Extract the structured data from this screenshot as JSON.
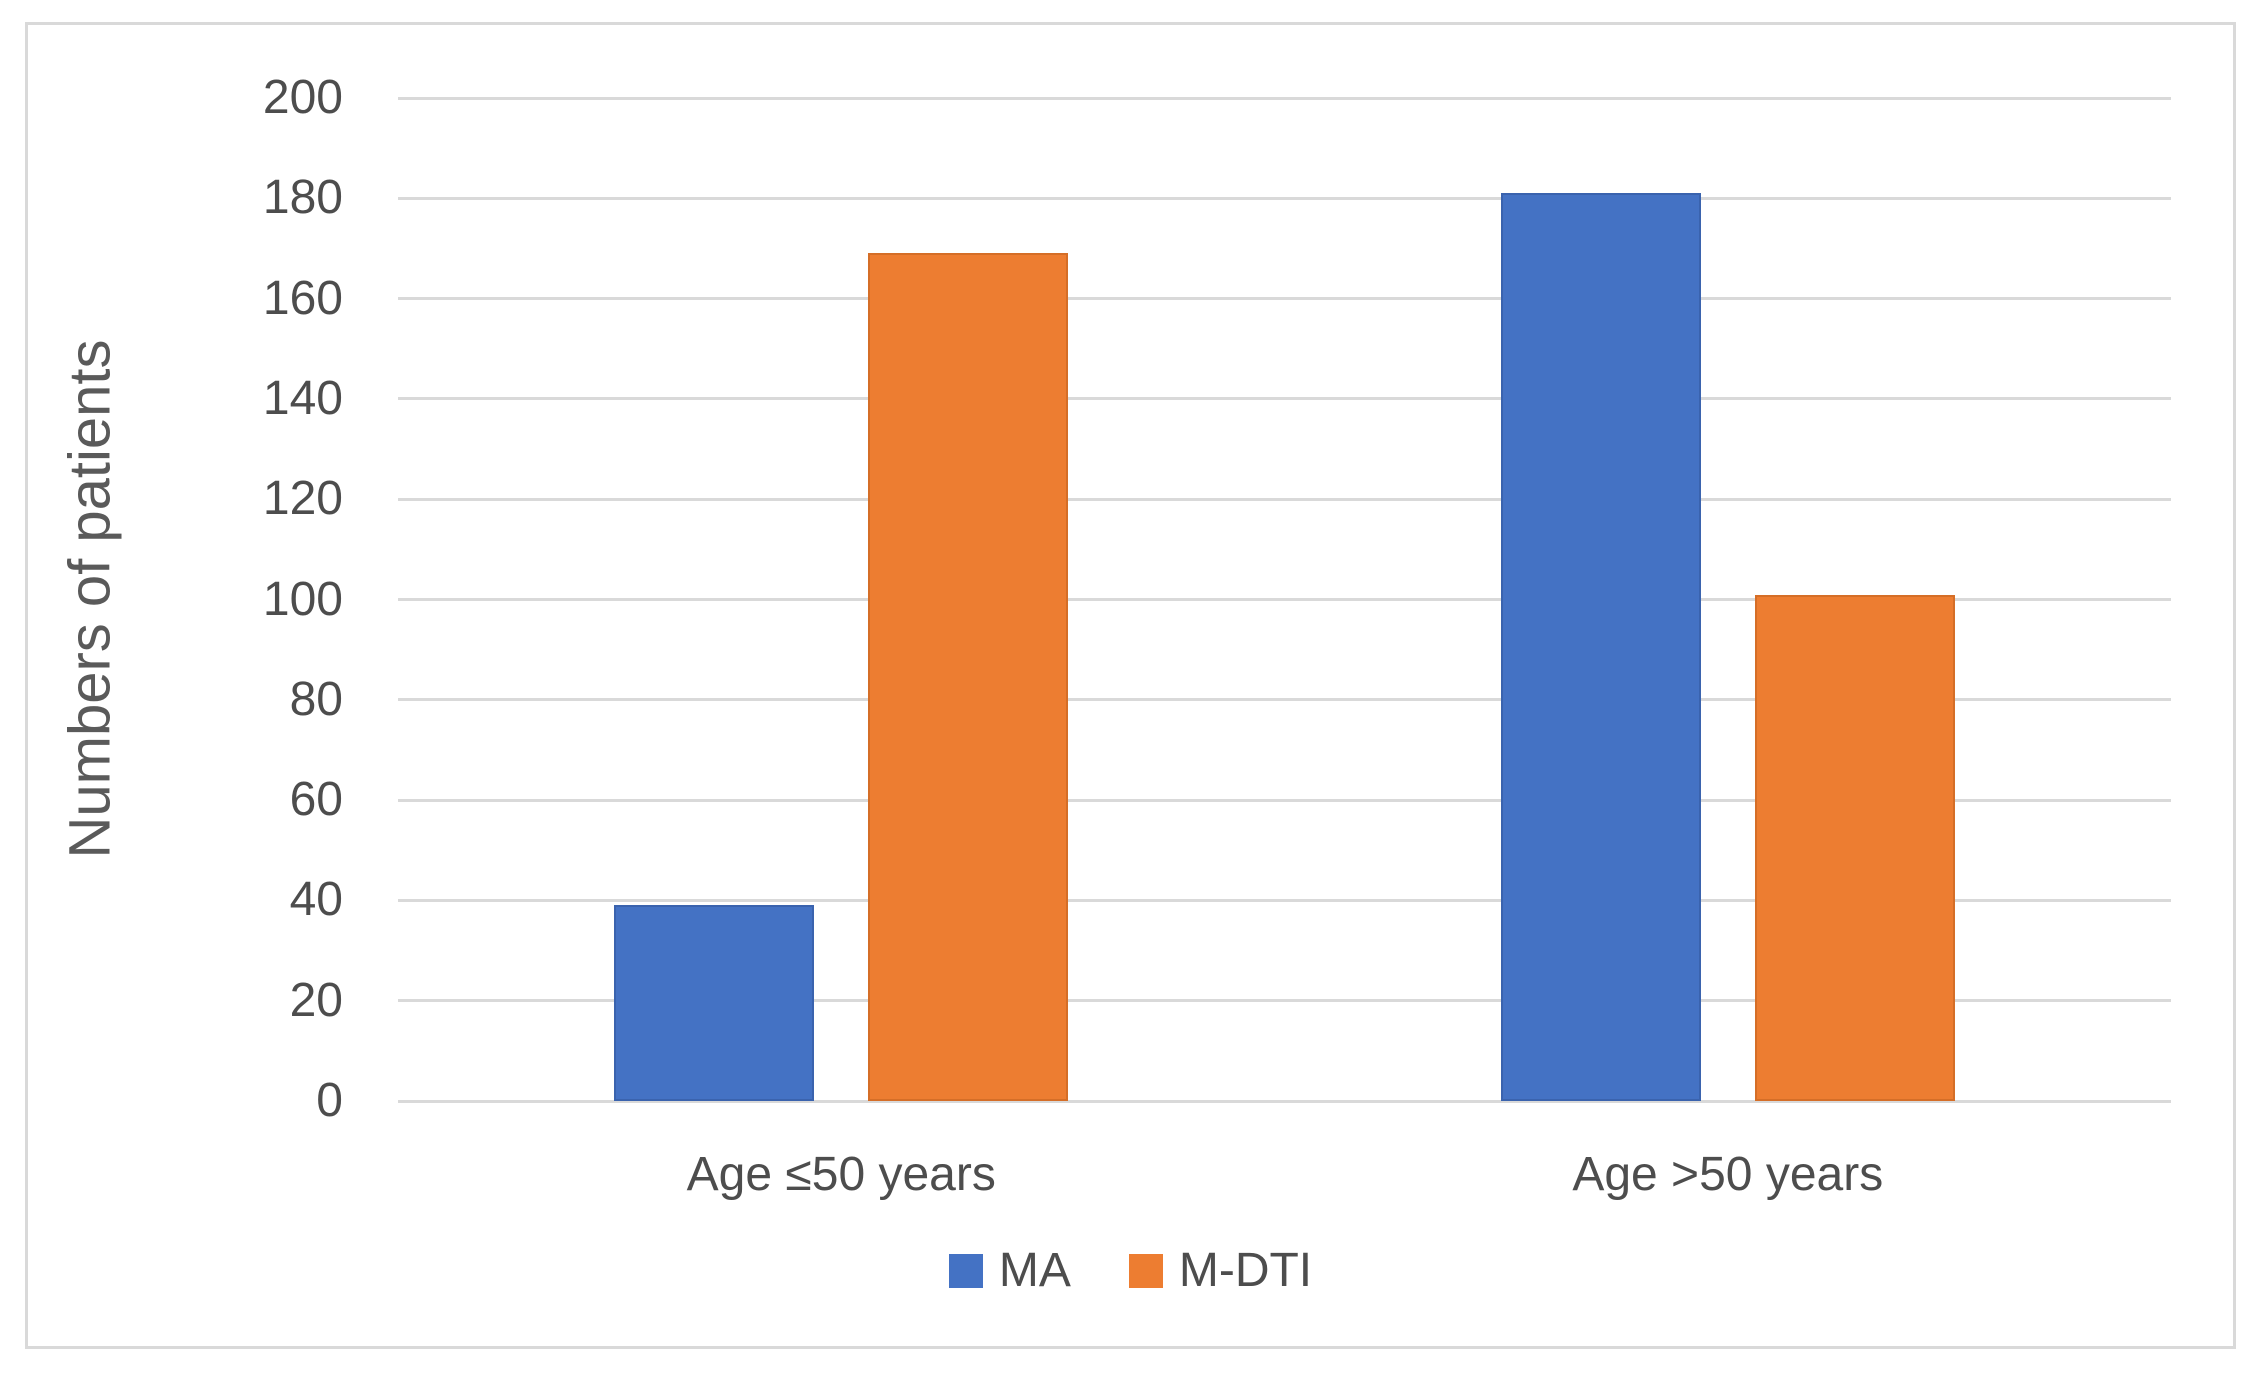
{
  "chart_data": {
    "type": "bar",
    "categories": [
      "Age ≤50 years",
      "Age >50 years"
    ],
    "series": [
      {
        "name": "MA",
        "color": "#4472C4",
        "edge_color": "#3A63AE",
        "values": [
          39,
          181
        ]
      },
      {
        "name": "M-DTI",
        "color": "#ED7D31",
        "edge_color": "#D56E27",
        "values": [
          169,
          101
        ]
      }
    ],
    "title": "",
    "xlabel": "",
    "ylabel": "Numbers of patients",
    "ylim": [
      0,
      200
    ],
    "ytick_step": 20,
    "yticks": [
      0,
      20,
      40,
      60,
      80,
      100,
      120,
      140,
      160,
      180,
      200
    ],
    "grid": true,
    "legend_position": "bottom"
  },
  "colors": {
    "background": "#FFFFFF",
    "figure_border": "#D9D9D9",
    "gridline": "#D9D9D9",
    "tick_text": "#4D4D4D",
    "axis_title_text": "#5A5A5A"
  }
}
